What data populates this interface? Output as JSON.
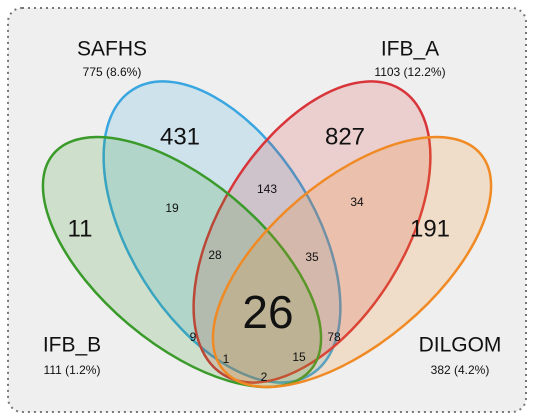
{
  "sets": [
    {
      "name": "SAFHS",
      "label": "775 (8.6%)"
    },
    {
      "name": "IFB_A",
      "label": "1103 (12.2%)"
    },
    {
      "name": "IFB_B",
      "label": "111 (1.2%)"
    },
    {
      "name": "DILGOM",
      "label": "382 (4.2%)"
    }
  ],
  "regions": [
    431,
    827,
    11,
    191,
    19,
    143,
    34,
    28,
    35,
    26,
    9,
    78,
    1,
    15,
    2
  ]
}
